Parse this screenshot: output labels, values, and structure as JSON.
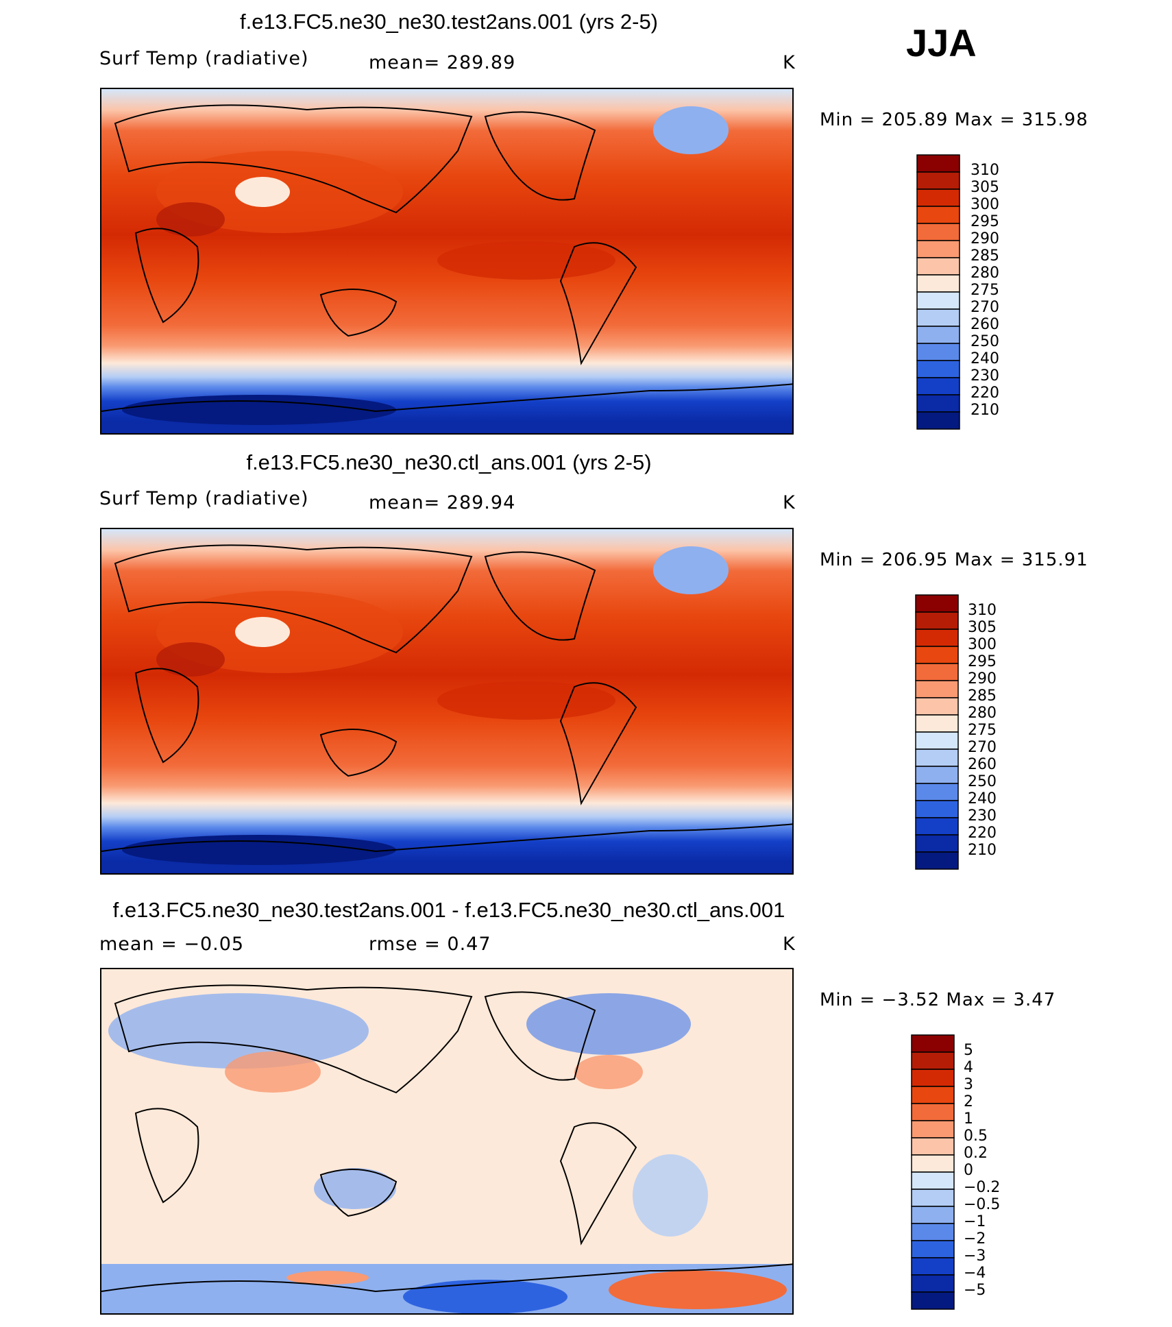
{
  "season": "JJA",
  "chart_data": [
    {
      "type": "heatmap",
      "title": "f.e13.FC5.ne30_ne30.test2ans.001 (yrs 2-5)",
      "variable": "Surf Temp (radiative)",
      "stat_text": "mean=  289.89",
      "units": "K",
      "min_max_text": "Min  =  205.89  Max  =  315.98",
      "min": 205.89,
      "max": 315.98,
      "colorbar_labels": [
        "310",
        "305",
        "300",
        "295",
        "290",
        "285",
        "280",
        "275",
        "270",
        "260",
        "250",
        "240",
        "230",
        "220",
        "210"
      ],
      "colorbar_colors": [
        "#8b0000",
        "#b51d06",
        "#d42a04",
        "#e8470f",
        "#f26b3a",
        "#f99a72",
        "#fcc5aa",
        "#fde9d9",
        "#d4e6fa",
        "#b3cdf5",
        "#8eb0ef",
        "#5b89ea",
        "#2e63e0",
        "#1440c8",
        "#0a2aa6",
        "#041a80"
      ]
    },
    {
      "type": "heatmap",
      "title": "f.e13.FC5.ne30_ne30.ctl_ans.001 (yrs 2-5)",
      "variable": "Surf Temp (radiative)",
      "stat_text": "mean=  289.94",
      "units": "K",
      "min_max_text": "Min  =  206.95  Max  =  315.91",
      "min": 206.95,
      "max": 315.91,
      "colorbar_labels": [
        "310",
        "305",
        "300",
        "295",
        "290",
        "285",
        "280",
        "275",
        "270",
        "260",
        "250",
        "240",
        "230",
        "220",
        "210"
      ],
      "colorbar_colors": [
        "#8b0000",
        "#b51d06",
        "#d42a04",
        "#e8470f",
        "#f26b3a",
        "#f99a72",
        "#fcc5aa",
        "#fde9d9",
        "#d4e6fa",
        "#b3cdf5",
        "#8eb0ef",
        "#5b89ea",
        "#2e63e0",
        "#1440c8",
        "#0a2aa6",
        "#041a80"
      ]
    },
    {
      "type": "heatmap",
      "title": "f.e13.FC5.ne30_ne30.test2ans.001 - f.e13.FC5.ne30_ne30.ctl_ans.001",
      "stat_text": "mean  =    −0.05",
      "rmse_text": "rmse  =      0.47",
      "units": "K",
      "min_max_text": "Min  =    −3.52  Max  =      3.47",
      "min": -3.52,
      "max": 3.47,
      "colorbar_labels": [
        "5",
        "4",
        "3",
        "2",
        "1",
        "0.5",
        "0.2",
        "0",
        "−0.2",
        "−0.5",
        "−1",
        "−2",
        "−3",
        "−4",
        "−5"
      ],
      "colorbar_colors": [
        "#8b0000",
        "#b51d06",
        "#d42a04",
        "#e8470f",
        "#f26b3a",
        "#f99a72",
        "#fcc5aa",
        "#fde9d9",
        "#d4e6fa",
        "#b3cdf5",
        "#8eb0ef",
        "#5b89ea",
        "#2e63e0",
        "#1440c8",
        "#0a2aa6",
        "#041a80"
      ]
    }
  ]
}
